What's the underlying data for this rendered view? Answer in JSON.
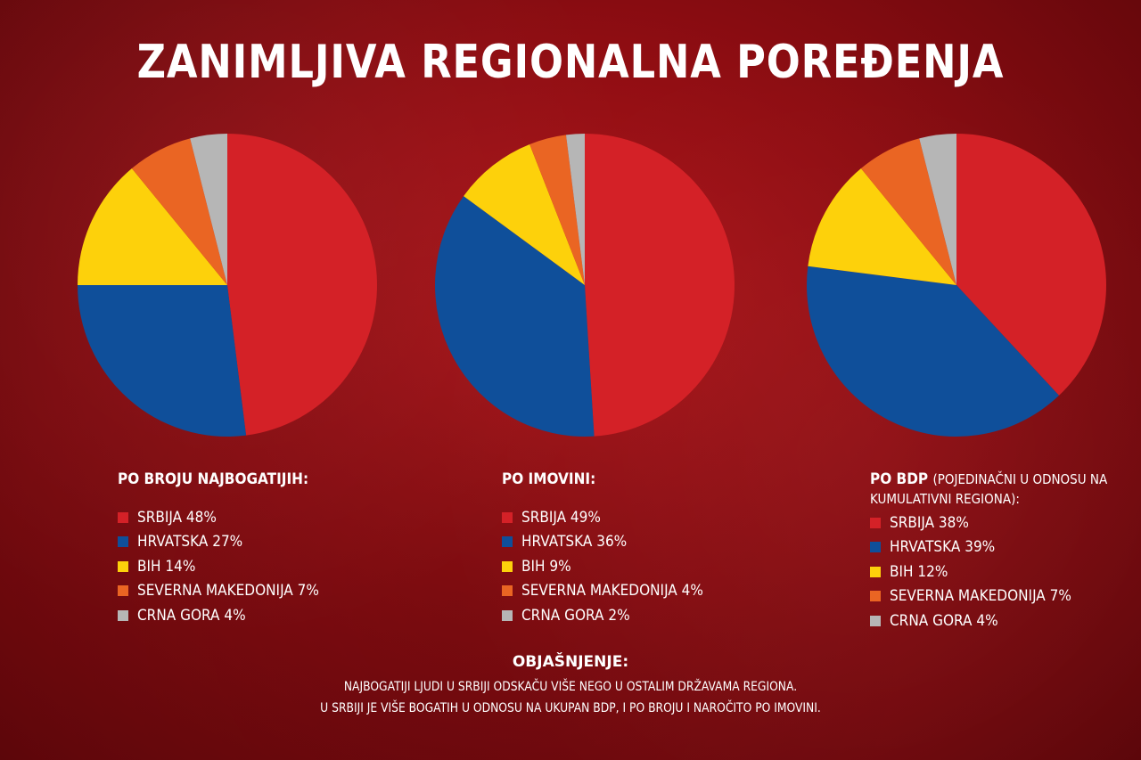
{
  "title": "ZANIMLJIVA REGIONALNA POREĐENJA",
  "colors": {
    "SRBIJA": "#d42127",
    "HRVATSKA": "#0f4f9a",
    "BIH": "#fdd10b",
    "SEVERNA MAKEDONIJA": "#ea6523",
    "CRNA GORA": "#b6b6b6"
  },
  "chart_data": [
    {
      "type": "pie",
      "title": "PO BROJU NAJBOGATIJIH:",
      "title_note": "",
      "categories": [
        "SRBIJA",
        "HRVATSKA",
        "BIH",
        "SEVERNA MAKEDONIJA",
        "CRNA GORA"
      ],
      "values": [
        48,
        27,
        14,
        7,
        4
      ],
      "legend_labels": [
        "SRBIJA 48%",
        "HRVATSKA 27%",
        "BIH 14%",
        "SEVERNA MAKEDONIJA 7%",
        "CRNA GORA 4%"
      ]
    },
    {
      "type": "pie",
      "title": "PO IMOVINI:",
      "title_note": "",
      "categories": [
        "SRBIJA",
        "HRVATSKA",
        "BIH",
        "SEVERNA MAKEDONIJA",
        "CRNA GORA"
      ],
      "values": [
        49,
        36,
        9,
        4,
        2
      ],
      "legend_labels": [
        "SRBIJA 49%",
        "HRVATSKA 36%",
        "BIH 9%",
        "SEVERNA MAKEDONIJA 4%",
        "CRNA GORA 2%"
      ]
    },
    {
      "type": "pie",
      "title": "PO BDP",
      "title_note": "(POJEDINAČNI U ODNOSU NA KUMULATIVNI REGIONA):",
      "categories": [
        "SRBIJA",
        "HRVATSKA",
        "BIH",
        "SEVERNA MAKEDONIJA",
        "CRNA GORA"
      ],
      "values": [
        38,
        39,
        12,
        7,
        4
      ],
      "legend_labels": [
        "SRBIJA 38%",
        "HRVATSKA 39%",
        "BIH 12%",
        "SEVERNA MAKEDONIJA 7%",
        "CRNA GORA 4%"
      ]
    }
  ],
  "explanation": {
    "title": "OBJAŠNJENJE:",
    "lines": [
      "NAJBOGATIJI LJUDI U SRBIJI ODSKAČU VIŠE NEGO U OSTALIM DRŽAVAMA REGIONA.",
      "U SRBIJI JE VIŠE BOGATIH U ODNOSU NA UKUPAN BDP, I PO BROJU I NAROČITO PO IMOVINI."
    ]
  }
}
